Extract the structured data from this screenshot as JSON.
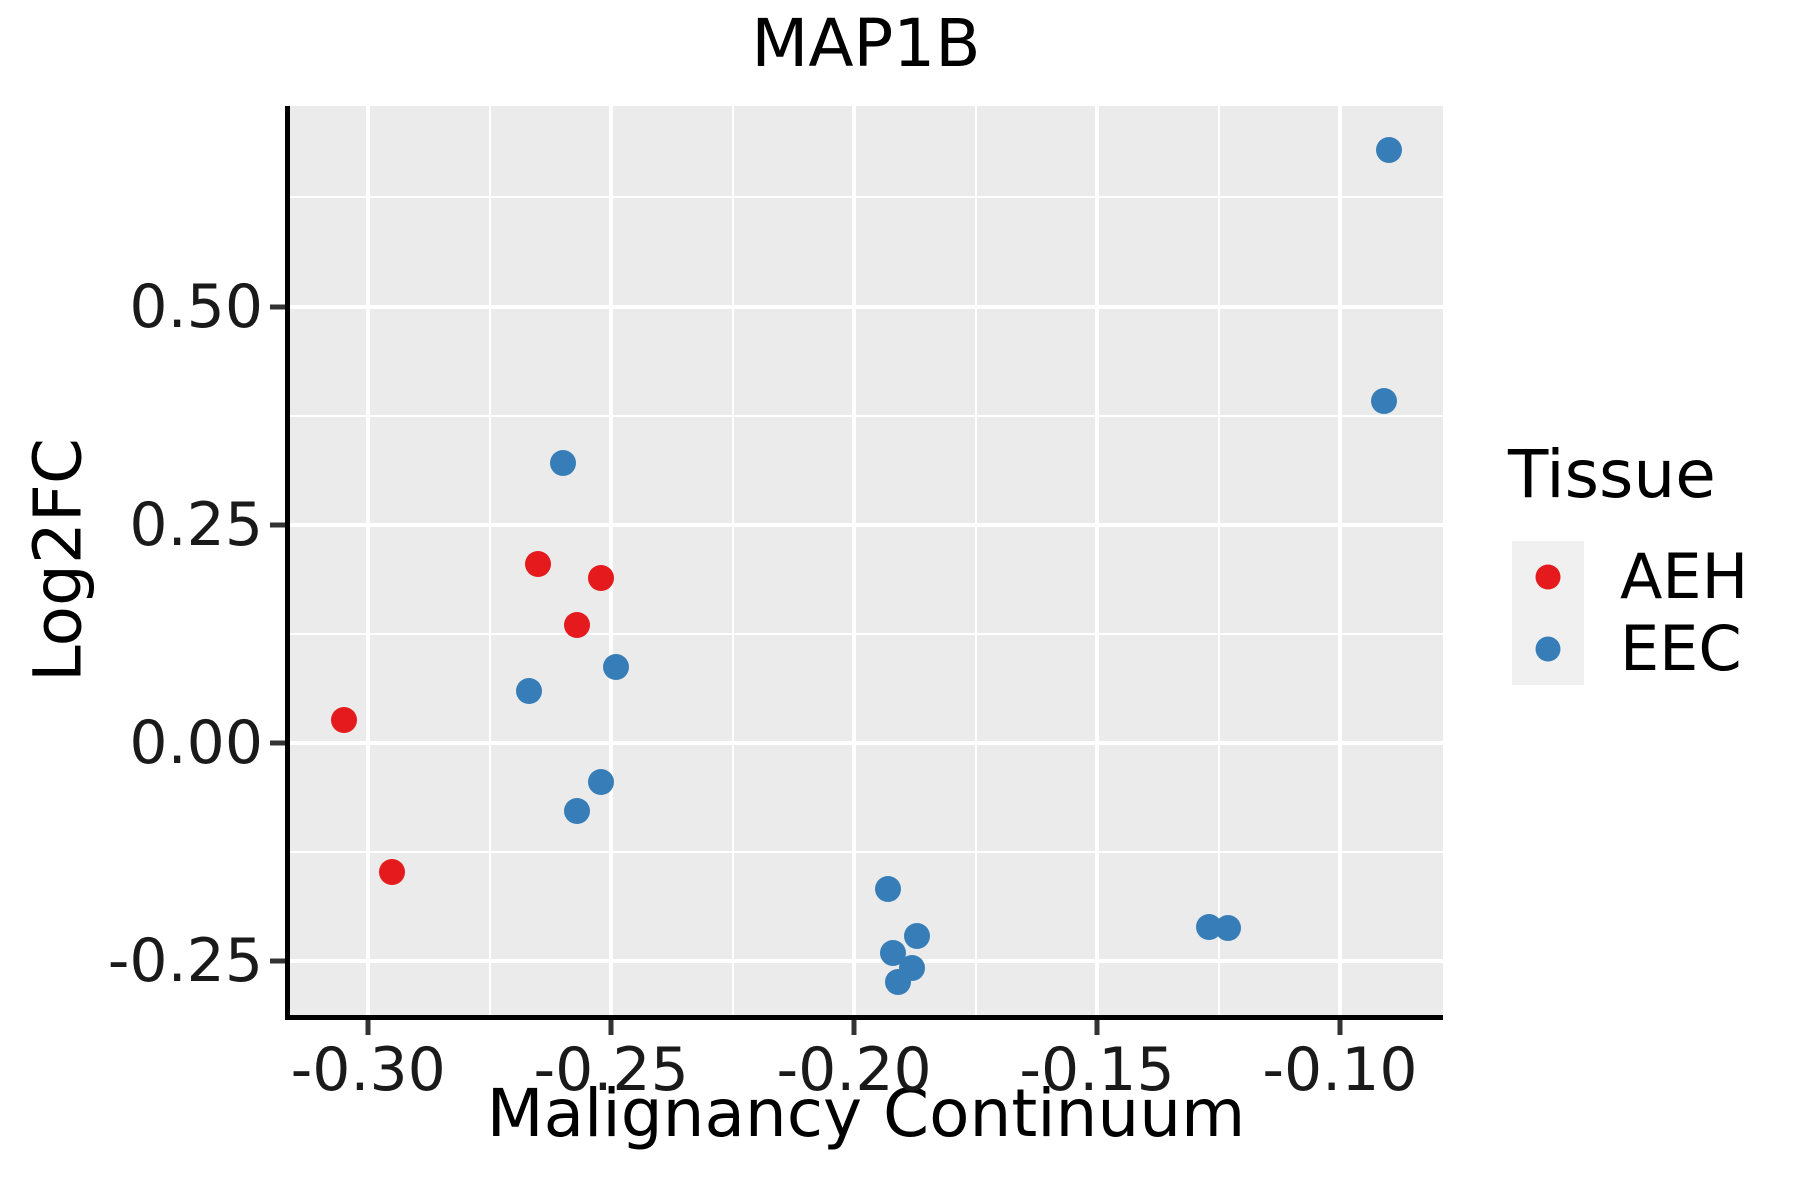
{
  "chart_data": {
    "type": "scatter",
    "title": "MAP1B",
    "xlabel": "Malignancy Continuum",
    "ylabel": "Log2FC",
    "xlim": [
      -0.3163,
      -0.0788
    ],
    "ylim": [
      -0.3116,
      0.7297
    ],
    "grid": "major and minor, white on gray panel",
    "panel_bg": "#EBEBEB",
    "x_ticks": {
      "values": [
        -0.3,
        -0.25,
        -0.2,
        -0.15,
        -0.1
      ],
      "labels": [
        "-0.30",
        "-0.25",
        "-0.20",
        "-0.15",
        "-0.10"
      ]
    },
    "y_ticks": {
      "values": [
        0.5,
        0.25,
        0.0,
        -0.25
      ],
      "labels": [
        "0.50",
        "0.25",
        "0.00",
        "-0.25"
      ]
    },
    "x_minor": [
      -0.275,
      -0.225,
      -0.175,
      -0.125
    ],
    "y_minor": [
      0.625,
      0.375,
      0.125,
      -0.125
    ],
    "series": [
      {
        "name": "AEH",
        "color": "#E41A1C",
        "points": [
          [
            -0.305,
            0.026
          ],
          [
            -0.295,
            -0.148
          ],
          [
            -0.265,
            0.205
          ],
          [
            -0.257,
            0.135
          ],
          [
            -0.252,
            0.189
          ]
        ]
      },
      {
        "name": "EEC",
        "color": "#377EB8",
        "points": [
          [
            -0.26,
            0.321
          ],
          [
            -0.267,
            0.06
          ],
          [
            -0.249,
            0.087
          ],
          [
            -0.252,
            -0.045
          ],
          [
            -0.257,
            -0.078
          ],
          [
            -0.193,
            -0.167
          ],
          [
            -0.187,
            -0.221
          ],
          [
            -0.192,
            -0.241
          ],
          [
            -0.188,
            -0.258
          ],
          [
            -0.191,
            -0.274
          ],
          [
            -0.127,
            -0.211
          ],
          [
            -0.123,
            -0.212
          ],
          [
            -0.09,
            0.679
          ],
          [
            -0.091,
            0.392
          ]
        ]
      }
    ],
    "legend": {
      "title": "Tissue",
      "position": "right",
      "entries": [
        {
          "label": "AEH",
          "color": "#E41A1C"
        },
        {
          "label": "EEC",
          "color": "#377EB8"
        }
      ]
    }
  }
}
